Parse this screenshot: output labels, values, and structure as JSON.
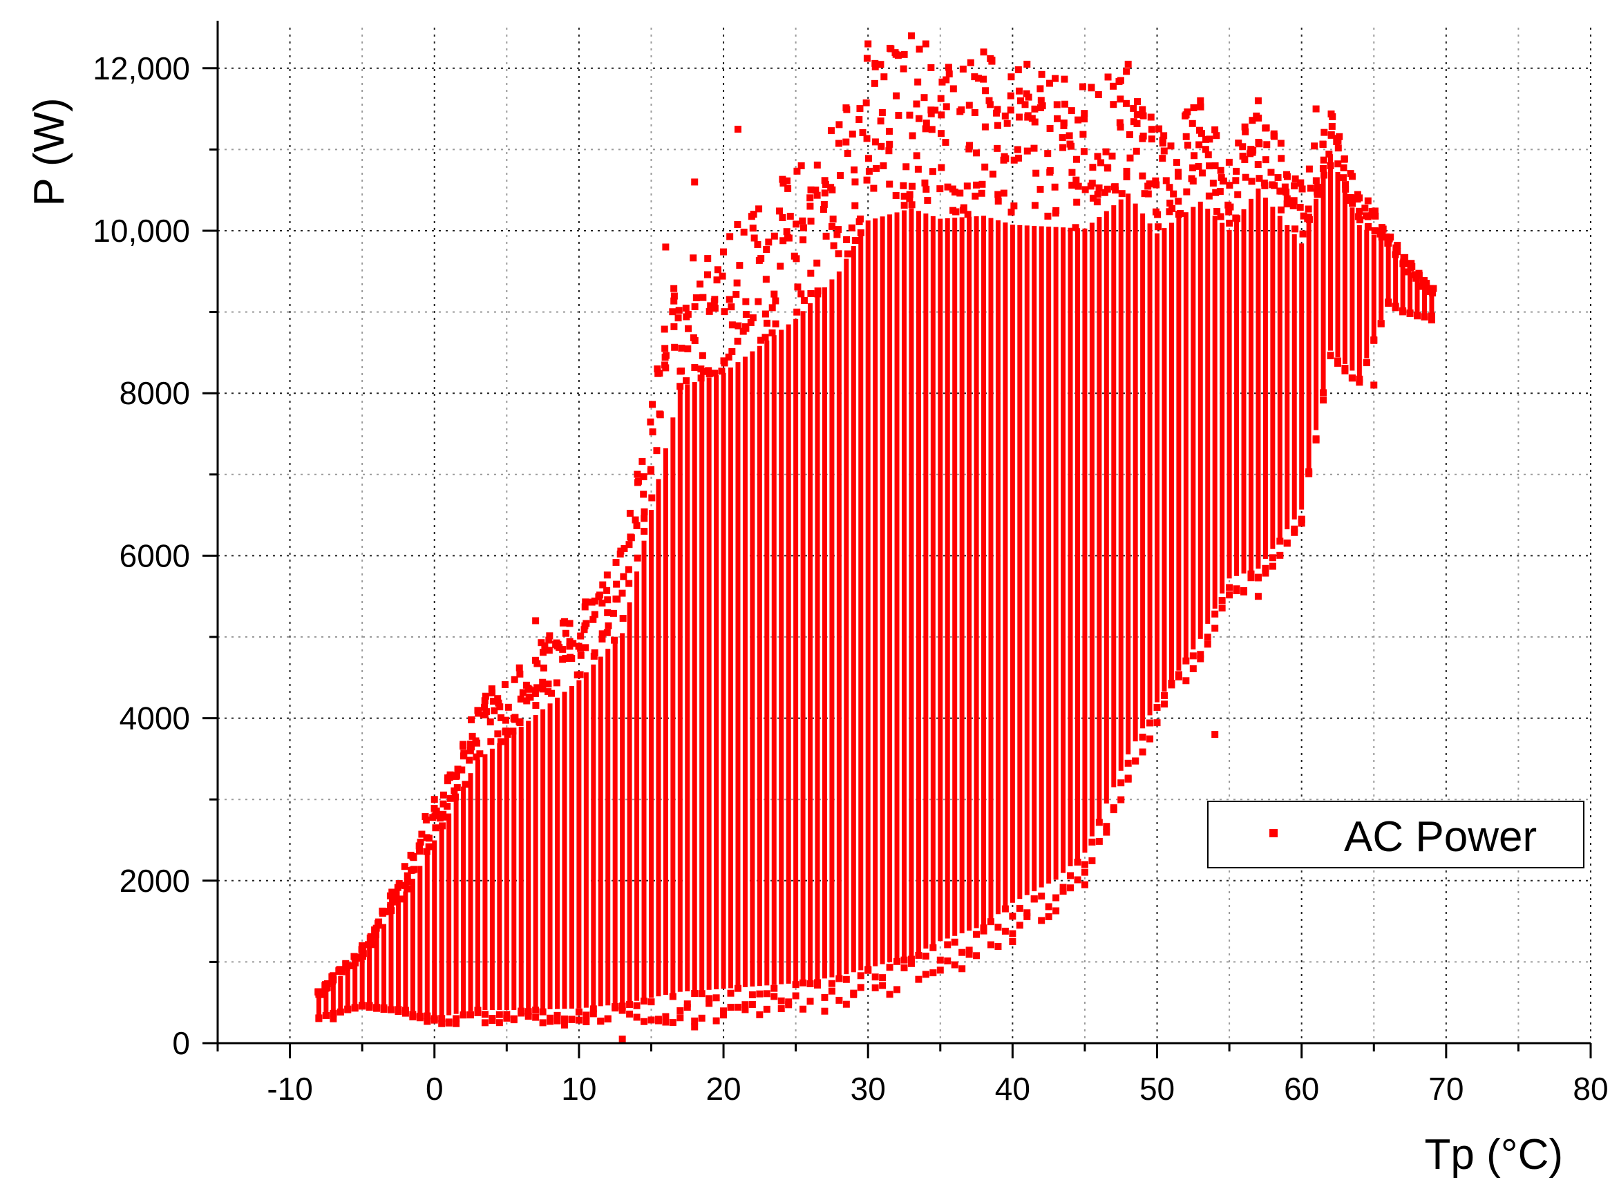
{
  "chart_data": {
    "type": "scatter",
    "xlabel": "Tp (°C)",
    "ylabel": "P (W)",
    "xlim": [
      -15,
      80
    ],
    "ylim": [
      0,
      12500
    ],
    "x_ticks": [
      -10,
      0,
      10,
      20,
      30,
      40,
      50,
      60,
      70,
      80
    ],
    "x_tick_labels": [
      "-10",
      "0",
      "10",
      "20",
      "30",
      "40",
      "50",
      "60",
      "70",
      "80"
    ],
    "y_ticks": [
      0,
      2000,
      4000,
      6000,
      8000,
      10000,
      12000
    ],
    "y_tick_labels": [
      "0",
      "2000",
      "4000",
      "6000",
      "8000",
      "10,000",
      "12,000"
    ],
    "grid": true,
    "legend_position": "right",
    "series": [
      {
        "name": "AC Power",
        "color": "#ff0000",
        "marker": "square",
        "envelope_by_temperature": [
          {
            "x": -8,
            "y_min": 300,
            "y_max": 650
          },
          {
            "x": -5,
            "y_min": 450,
            "y_max": 1200
          },
          {
            "x": -2,
            "y_min": 350,
            "y_max": 2200
          },
          {
            "x": 0,
            "y_min": 200,
            "y_max": 3000
          },
          {
            "x": 3,
            "y_min": 250,
            "y_max": 4200
          },
          {
            "x": 6,
            "y_min": 230,
            "y_max": 4700
          },
          {
            "x": 10,
            "y_min": 220,
            "y_max": 5400
          },
          {
            "x": 13,
            "y_min": 250,
            "y_max": 6100
          },
          {
            "x": 17,
            "y_min": 250,
            "y_max": 9800
          },
          {
            "x": 20,
            "y_min": 280,
            "y_max": 10000
          },
          {
            "x": 25,
            "y_min": 320,
            "y_max": 10800
          },
          {
            "x": 28,
            "y_min": 380,
            "y_max": 11500
          },
          {
            "x": 30,
            "y_min": 450,
            "y_max": 12250
          },
          {
            "x": 33,
            "y_min": 600,
            "y_max": 12400
          },
          {
            "x": 35,
            "y_min": 800,
            "y_max": 12200
          },
          {
            "x": 38,
            "y_min": 1000,
            "y_max": 12200
          },
          {
            "x": 40,
            "y_min": 1300,
            "y_max": 12000
          },
          {
            "x": 43,
            "y_min": 1600,
            "y_max": 11900
          },
          {
            "x": 45,
            "y_min": 1950,
            "y_max": 11800
          },
          {
            "x": 48,
            "y_min": 3200,
            "y_max": 12050
          },
          {
            "x": 50,
            "y_min": 3900,
            "y_max": 11300
          },
          {
            "x": 53,
            "y_min": 4700,
            "y_max": 11600
          },
          {
            "x": 55,
            "y_min": 5500,
            "y_max": 11000
          },
          {
            "x": 57,
            "y_min": 5600,
            "y_max": 11600
          },
          {
            "x": 60,
            "y_min": 6400,
            "y_max": 10600
          },
          {
            "x": 62,
            "y_min": 8400,
            "y_max": 11500
          },
          {
            "x": 64,
            "y_min": 8100,
            "y_max": 10500
          },
          {
            "x": 66,
            "y_min": 9100,
            "y_max": 10000
          },
          {
            "x": 67,
            "y_min": 9000,
            "y_max": 9700
          },
          {
            "x": 69,
            "y_min": 8900,
            "y_max": 9300
          }
        ],
        "sample_points": [
          {
            "x": 13,
            "y": 50
          },
          {
            "x": 18,
            "y": 200
          },
          {
            "x": 21,
            "y": 11250
          },
          {
            "x": 30,
            "y": 12300
          },
          {
            "x": 33,
            "y": 12400
          },
          {
            "x": 34,
            "y": 12300
          },
          {
            "x": 38,
            "y": 12200
          },
          {
            "x": 41,
            "y": 12050
          },
          {
            "x": 48,
            "y": 12050
          },
          {
            "x": 53,
            "y": 11600
          },
          {
            "x": 57,
            "y": 11600
          },
          {
            "x": 61,
            "y": 11500
          },
          {
            "x": 62,
            "y": 10800
          },
          {
            "x": 65,
            "y": 8100
          },
          {
            "x": 69,
            "y": 8950
          },
          {
            "x": 54,
            "y": 3800
          },
          {
            "x": 45,
            "y": 1950
          },
          {
            "x": 40,
            "y": 1250
          },
          {
            "x": -8,
            "y": 600
          },
          {
            "x": -7,
            "y": 300
          },
          {
            "x": 0,
            "y": 3000
          },
          {
            "x": 7,
            "y": 5200
          },
          {
            "x": 18,
            "y": 10600
          },
          {
            "x": 16,
            "y": 9800
          },
          {
            "x": 60,
            "y": 6400
          },
          {
            "x": 57,
            "y": 5500
          },
          {
            "x": 48,
            "y": 3250
          }
        ]
      }
    ]
  }
}
